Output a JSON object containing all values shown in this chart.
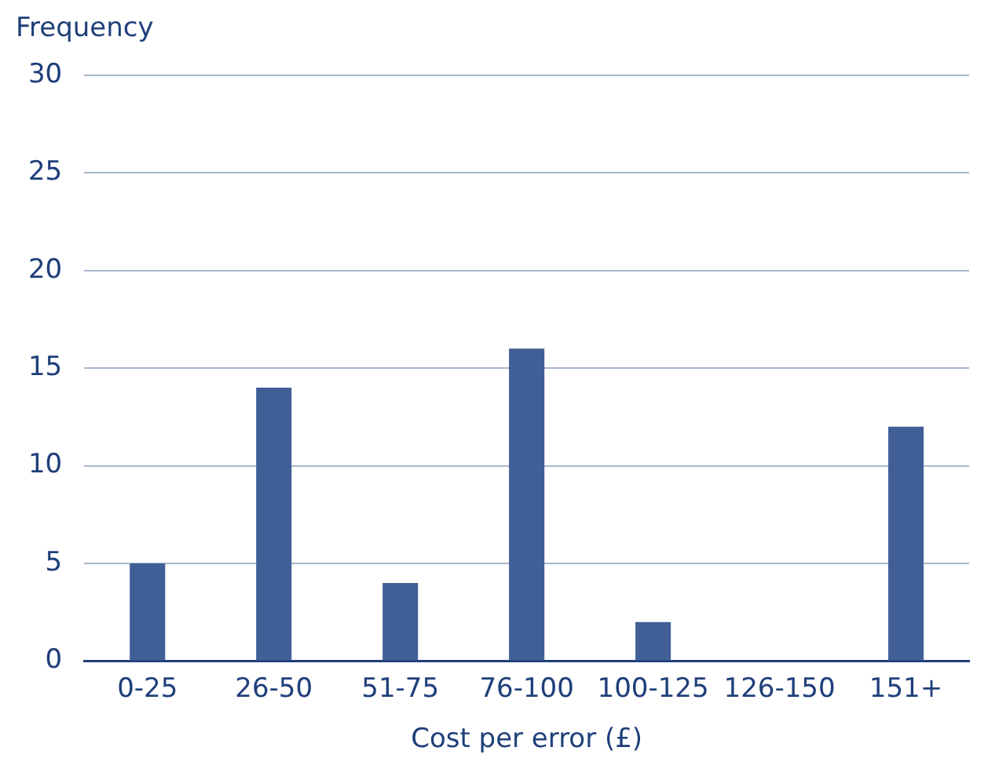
{
  "chart_data": {
    "type": "bar",
    "ylabel": "Frequency",
    "xlabel": "Cost per error (£)",
    "categories": [
      "0-25",
      "26-50",
      "51-75",
      "76-100",
      "100-125",
      "126-150",
      "151+"
    ],
    "values": [
      5,
      14,
      4,
      16,
      2,
      0,
      12
    ],
    "color": "#3f5f96",
    "ylim": [
      0,
      30
    ],
    "yticks": [
      0,
      5,
      10,
      15,
      20,
      25,
      30
    ],
    "grid": "y",
    "legend": false
  }
}
